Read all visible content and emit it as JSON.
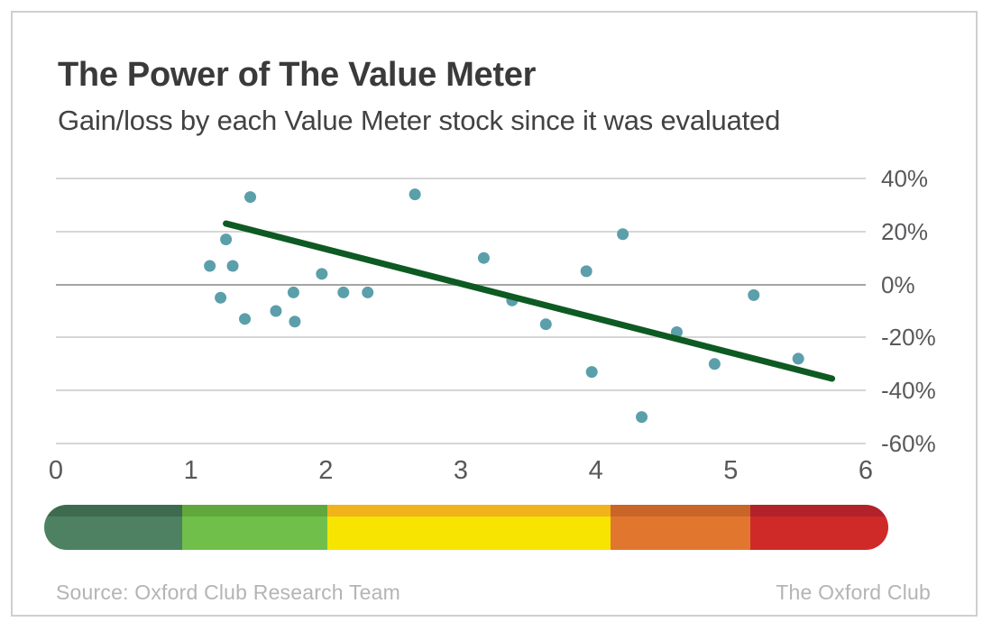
{
  "header": {
    "title": "The Power of The Value Meter",
    "subtitle": "Gain/loss by each Value Meter stock since it was evaluated"
  },
  "chart_data": {
    "type": "scatter",
    "title": "The Power of The Value Meter",
    "subtitle": "Gain/loss by each Value Meter stock since it was evaluated",
    "xlabel": "",
    "ylabel": "",
    "xlim": [
      0,
      6
    ],
    "ylim_pct": [
      -60,
      40
    ],
    "x_ticks": [
      "0",
      "1",
      "2",
      "3",
      "4",
      "5",
      "6"
    ],
    "y_ticks": [
      "40%",
      "20%",
      "0%",
      "-20%",
      "-40%",
      "-60%"
    ],
    "grid": true,
    "legend_position": "none",
    "points": [
      {
        "x": 1.14,
        "y_pct": 7
      },
      {
        "x": 1.22,
        "y_pct": -5
      },
      {
        "x": 1.26,
        "y_pct": 17
      },
      {
        "x": 1.31,
        "y_pct": 7
      },
      {
        "x": 1.4,
        "y_pct": -13
      },
      {
        "x": 1.44,
        "y_pct": 33
      },
      {
        "x": 1.63,
        "y_pct": -10
      },
      {
        "x": 1.76,
        "y_pct": -3
      },
      {
        "x": 1.77,
        "y_pct": -14
      },
      {
        "x": 1.97,
        "y_pct": 4
      },
      {
        "x": 2.13,
        "y_pct": -3
      },
      {
        "x": 2.31,
        "y_pct": -3
      },
      {
        "x": 2.66,
        "y_pct": 34
      },
      {
        "x": 3.17,
        "y_pct": 10
      },
      {
        "x": 3.38,
        "y_pct": -6
      },
      {
        "x": 3.63,
        "y_pct": -15
      },
      {
        "x": 3.93,
        "y_pct": 5
      },
      {
        "x": 3.97,
        "y_pct": -33
      },
      {
        "x": 4.2,
        "y_pct": 19
      },
      {
        "x": 4.34,
        "y_pct": -50
      },
      {
        "x": 4.6,
        "y_pct": -18
      },
      {
        "x": 4.88,
        "y_pct": -30
      },
      {
        "x": 5.17,
        "y_pct": -4
      },
      {
        "x": 5.5,
        "y_pct": -28
      }
    ],
    "trend_line": {
      "x1": 1.26,
      "y1_pct": 23,
      "x2": 5.75,
      "y2_pct": -35.5
    },
    "colors": {
      "point": "#5b9faa",
      "trend": "#0e5a23",
      "grid": "#d6d6d6",
      "zero_line": "#a5a5a5"
    }
  },
  "meter": {
    "name": "value-meter-color-scale",
    "segments": [
      {
        "name": "dark-green",
        "width_pct": 16.35,
        "top_color": "#3e6a4f",
        "body_color": "#4e8162"
      },
      {
        "name": "green",
        "width_pct": 17.2,
        "top_color": "#61a83c",
        "body_color": "#70bf4b"
      },
      {
        "name": "yellow",
        "width_pct": 33.55,
        "top_color": "#f0b31c",
        "body_color": "#f7e400"
      },
      {
        "name": "orange",
        "width_pct": 16.55,
        "top_color": "#c96527",
        "body_color": "#e1772e"
      },
      {
        "name": "red",
        "width_pct": 16.35,
        "top_color": "#b2222a",
        "body_color": "#cf2a28"
      }
    ]
  },
  "footer": {
    "source": "Source: Oxford Club Research Team",
    "brand": "The Oxford Club"
  }
}
